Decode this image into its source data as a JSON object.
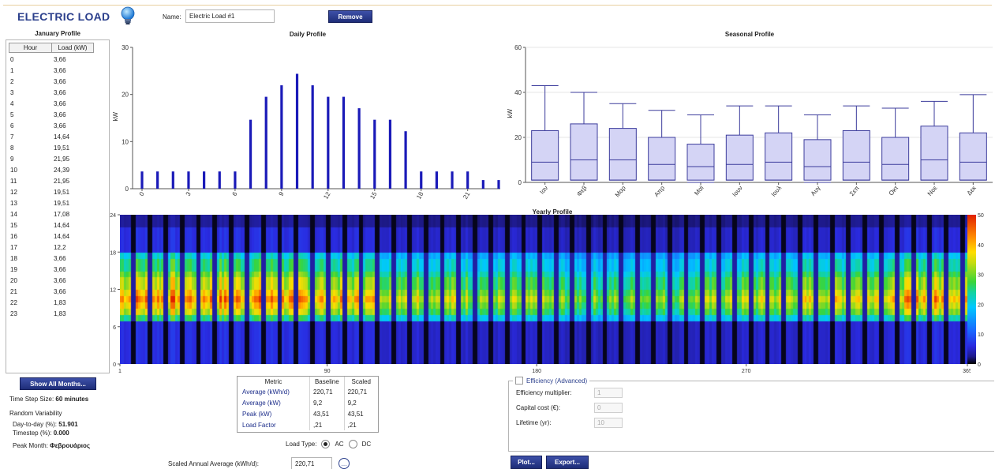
{
  "header": {
    "title": "ELECTRIC LOAD",
    "name_label": "Name:",
    "name_value": "Electric Load #1",
    "remove_label": "Remove"
  },
  "january": {
    "title": "January Profile",
    "col_hour": "Hour",
    "col_load": "Load (kW)",
    "rows": [
      {
        "hour": "0",
        "load": "3,66"
      },
      {
        "hour": "1",
        "load": "3,66"
      },
      {
        "hour": "2",
        "load": "3,66"
      },
      {
        "hour": "3",
        "load": "3,66"
      },
      {
        "hour": "4",
        "load": "3,66"
      },
      {
        "hour": "5",
        "load": "3,66"
      },
      {
        "hour": "6",
        "load": "3,66"
      },
      {
        "hour": "7",
        "load": "14,64"
      },
      {
        "hour": "8",
        "load": "19,51"
      },
      {
        "hour": "9",
        "load": "21,95"
      },
      {
        "hour": "10",
        "load": "24,39"
      },
      {
        "hour": "11",
        "load": "21,95"
      },
      {
        "hour": "12",
        "load": "19,51"
      },
      {
        "hour": "13",
        "load": "19,51"
      },
      {
        "hour": "14",
        "load": "17,08"
      },
      {
        "hour": "15",
        "load": "14,64"
      },
      {
        "hour": "16",
        "load": "14,64"
      },
      {
        "hour": "17",
        "load": "12,2"
      },
      {
        "hour": "18",
        "load": "3,66"
      },
      {
        "hour": "19",
        "load": "3,66"
      },
      {
        "hour": "20",
        "load": "3,66"
      },
      {
        "hour": "21",
        "load": "3,66"
      },
      {
        "hour": "22",
        "load": "1,83"
      },
      {
        "hour": "23",
        "load": "1,83"
      }
    ]
  },
  "left_footer": {
    "show_all_label": "Show All Months...",
    "timestep_text": "Time Step Size:",
    "timestep_value": "60 minutes",
    "random_variability": "Random Variability",
    "day_to_day_label": "Day-to-day (%):",
    "day_to_day_value": "51.901",
    "timestep_var_label": "Timestep (%):",
    "timestep_var_value": "0.000",
    "peak_month_label": "Peak Month:",
    "peak_month_value": "Φεβρουάριος"
  },
  "metrics": {
    "col_metric": "Metric",
    "col_baseline": "Baseline",
    "col_scaled": "Scaled",
    "rows": [
      {
        "name": "Average (kWh/d)",
        "baseline": "220,71",
        "scaled": "220,71"
      },
      {
        "name": "Average (kW)",
        "baseline": "9,2",
        "scaled": "9,2"
      },
      {
        "name": "Peak (kW)",
        "baseline": "43,51",
        "scaled": "43,51"
      },
      {
        "name": "Load Factor",
        "baseline": ",21",
        "scaled": ",21"
      }
    ]
  },
  "load_type": {
    "label": "Load Type:",
    "ac": "AC",
    "dc": "DC",
    "selected": "AC"
  },
  "scaled_annual": {
    "label": "Scaled Annual Average (kWh/d):",
    "value": "220,71"
  },
  "efficiency": {
    "legend": "Efficiency (Advanced)",
    "multiplier_label": "Efficiency multiplier:",
    "multiplier_value": "1",
    "capital_label": "Capital cost (€):",
    "capital_value": "0",
    "lifetime_label": "Lifetime (yr):",
    "lifetime_value": "10"
  },
  "buttons": {
    "plot": "Plot...",
    "export": "Export..."
  },
  "colors": {
    "accent": "#2b3f8c",
    "bar": "#1a1ab8",
    "box_fill": "#d4d4f5",
    "box_stroke": "#3c3c9c"
  },
  "chart_data": [
    {
      "type": "bar",
      "title": "Daily Profile",
      "ylabel": "kW",
      "ylim": [
        0,
        30
      ],
      "yticks": [
        0,
        10,
        20,
        30
      ],
      "xticks": [
        0,
        3,
        6,
        9,
        12,
        15,
        18,
        21
      ],
      "categories": [
        0,
        1,
        2,
        3,
        4,
        5,
        6,
        7,
        8,
        9,
        10,
        11,
        12,
        13,
        14,
        15,
        16,
        17,
        18,
        19,
        20,
        21,
        22,
        23
      ],
      "values": [
        3.66,
        3.66,
        3.66,
        3.66,
        3.66,
        3.66,
        3.66,
        14.64,
        19.51,
        21.95,
        24.39,
        21.95,
        19.51,
        19.51,
        17.08,
        14.64,
        14.64,
        12.2,
        3.66,
        3.66,
        3.66,
        3.66,
        1.83,
        1.83
      ]
    },
    {
      "type": "box",
      "title": "Seasonal Profile",
      "ylabel": "kW",
      "ylim": [
        0,
        60
      ],
      "yticks": [
        0,
        20,
        40,
        60
      ],
      "categories": [
        "Ιαν",
        "Φεβ",
        "Μαρ",
        "Απρ",
        "Μαϊ",
        "Ιουν",
        "Ιουλ",
        "Αυγ",
        "Σεπ",
        "Οκτ",
        "Νοε",
        "Δεκ"
      ],
      "boxes": [
        {
          "min": 1,
          "q1": 1,
          "median": 9,
          "q3": 23,
          "max": 43
        },
        {
          "min": 1,
          "q1": 1,
          "median": 10,
          "q3": 26,
          "max": 40
        },
        {
          "min": 1,
          "q1": 1,
          "median": 10,
          "q3": 24,
          "max": 35
        },
        {
          "min": 1,
          "q1": 1,
          "median": 8,
          "q3": 20,
          "max": 32
        },
        {
          "min": 0,
          "q1": 1,
          "median": 7,
          "q3": 17,
          "max": 30
        },
        {
          "min": 1,
          "q1": 1,
          "median": 8,
          "q3": 21,
          "max": 34
        },
        {
          "min": 1,
          "q1": 1,
          "median": 9,
          "q3": 22,
          "max": 34
        },
        {
          "min": 0,
          "q1": 1,
          "median": 7,
          "q3": 19,
          "max": 30
        },
        {
          "min": 1,
          "q1": 1,
          "median": 9,
          "q3": 23,
          "max": 34
        },
        {
          "min": 1,
          "q1": 1,
          "median": 8,
          "q3": 20,
          "max": 33
        },
        {
          "min": 1,
          "q1": 1,
          "median": 10,
          "q3": 25,
          "max": 36
        },
        {
          "min": 1,
          "q1": 1,
          "median": 9,
          "q3": 22,
          "max": 39
        }
      ]
    },
    {
      "type": "heatmap",
      "title": "Yearly Profile",
      "xlim": [
        1,
        365
      ],
      "xticks": [
        1,
        90,
        180,
        270,
        365
      ],
      "ylim": [
        0,
        24
      ],
      "yticks": [
        0,
        6,
        12,
        18,
        24
      ],
      "clim": [
        0,
        50
      ],
      "cticks": [
        0,
        10,
        20,
        30,
        40,
        50
      ]
    }
  ]
}
